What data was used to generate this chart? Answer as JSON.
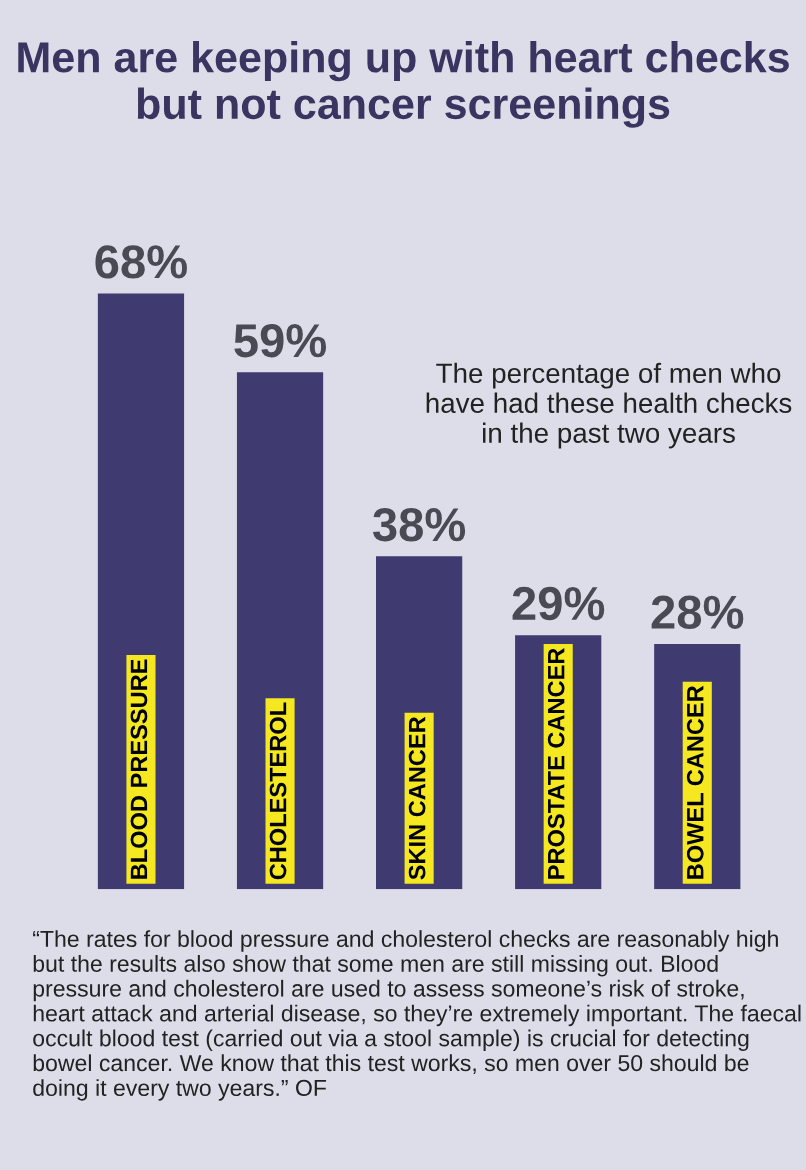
{
  "chart_data": {
    "type": "bar",
    "title": "Men are keeping up with heart checks but not cancer screenings",
    "subtitle": "The percentage of men who have had these health checks in the past two years",
    "categories": [
      "BLOOD PRESSURE",
      "CHOLESTEROL",
      "SKIN CANCER",
      "PROSTATE CANCER",
      "BOWEL CANCER"
    ],
    "values": [
      68,
      59,
      38,
      29,
      28
    ],
    "value_labels": [
      "68%",
      "59%",
      "38%",
      "29%",
      "28%"
    ],
    "color": "#3f3b70",
    "annotations": [
      "“The rates for blood pressure and cholesterol checks are reasonably high but the results also show that some men are still missing out. Blood pressure and cholesterol are used to assess someone’s risk of stroke, heart attack and arterial disease, so they’re extremely important. The faecal occult blood test (carried out via a stool sample) is crucial for detecting bowel cancer. We know that this test works, so men over 50 should be doing it every two years.” OF"
    ],
    "tick_labels": false
  }
}
